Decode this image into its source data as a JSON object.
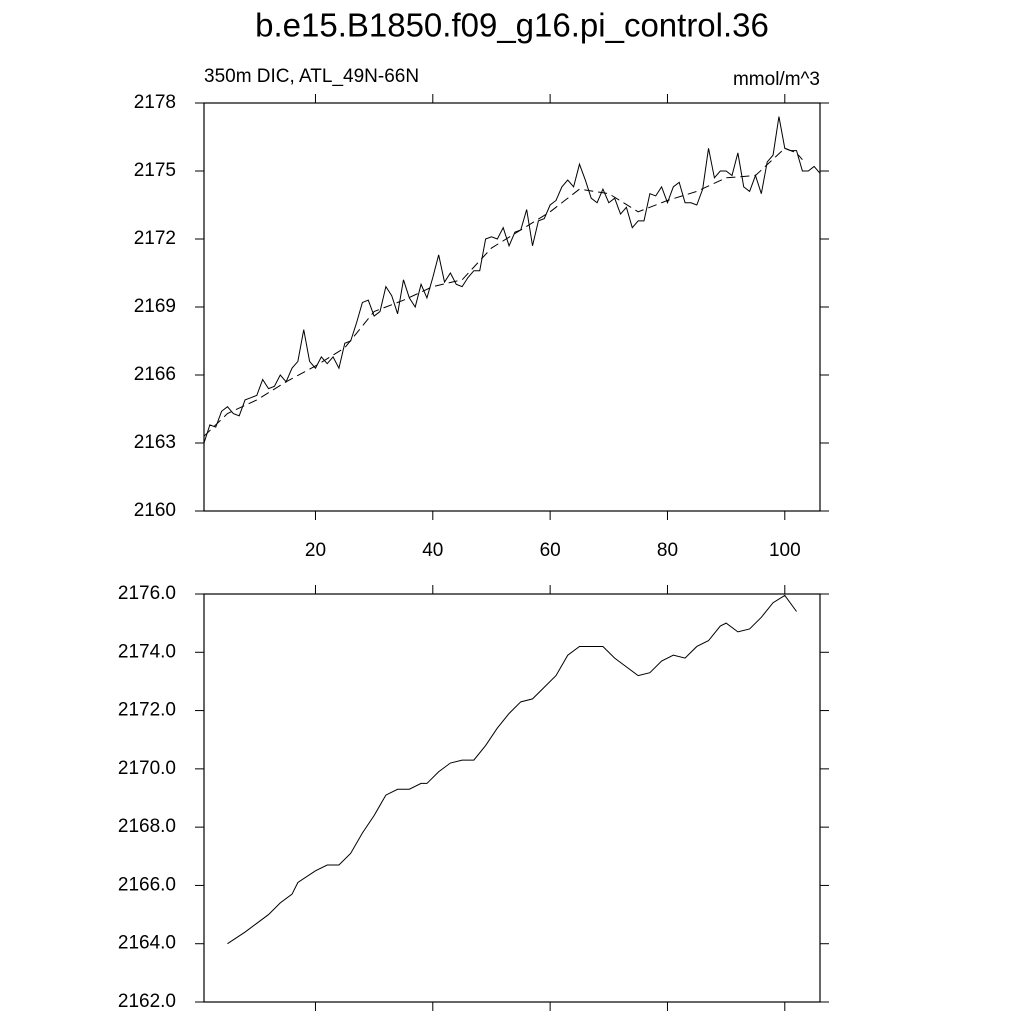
{
  "chart_data": [
    {
      "type": "line",
      "title": "b.e15.B1850.f09_g16.pi_control.36",
      "left_label": "350m DIC, ATL_49N-66N",
      "right_label": "mmol/m^3",
      "xlim": [
        1,
        106
      ],
      "xticks": [
        20,
        40,
        60,
        80,
        100
      ],
      "ylim": [
        2160,
        2178
      ],
      "yticks": [
        2160,
        2163,
        2166,
        2169,
        2172,
        2175,
        2178
      ],
      "series": [
        {
          "color": "#000000",
          "line_style": "solid",
          "x": [
            1,
            2,
            3,
            4,
            5,
            6,
            7,
            8,
            9,
            10,
            11,
            12,
            13,
            14,
            15,
            16,
            17,
            18,
            19,
            20,
            21,
            22,
            23,
            24,
            25,
            26,
            27,
            28,
            29,
            30,
            31,
            32,
            33,
            34,
            35,
            36,
            37,
            38,
            39,
            40,
            41,
            42,
            43,
            44,
            45,
            46,
            47,
            48,
            49,
            50,
            51,
            52,
            53,
            54,
            55,
            56,
            57,
            58,
            59,
            60,
            61,
            62,
            63,
            64,
            65,
            66,
            67,
            68,
            69,
            70,
            71,
            72,
            73,
            74,
            75,
            76,
            77,
            78,
            79,
            80,
            81,
            82,
            83,
            84,
            85,
            86,
            87,
            88,
            89,
            90,
            91,
            92,
            93,
            94,
            95,
            96,
            97,
            98,
            99,
            100,
            101,
            102,
            103,
            104,
            105,
            106
          ],
          "values": [
            2163.0,
            2163.8,
            2163.7,
            2164.4,
            2164.6,
            2164.3,
            2164.2,
            2164.9,
            2165.0,
            2165.1,
            2165.8,
            2165.4,
            2165.5,
            2166.0,
            2165.7,
            2166.3,
            2166.6,
            2168.0,
            2166.6,
            2166.3,
            2166.8,
            2166.5,
            2166.8,
            2166.3,
            2167.4,
            2167.5,
            2168.3,
            2169.2,
            2169.3,
            2168.6,
            2168.8,
            2169.9,
            2169.5,
            2168.7,
            2170.2,
            2169.4,
            2169.0,
            2170.0,
            2169.4,
            2170.3,
            2171.3,
            2170.1,
            2170.5,
            2170.0,
            2169.9,
            2170.3,
            2170.6,
            2170.6,
            2172.0,
            2172.1,
            2172.0,
            2172.5,
            2171.7,
            2172.3,
            2172.4,
            2173.3,
            2171.7,
            2172.8,
            2172.9,
            2173.5,
            2173.7,
            2174.3,
            2174.6,
            2174.3,
            2175.3,
            2174.6,
            2173.8,
            2173.6,
            2174.2,
            2173.6,
            2173.8,
            2173.1,
            2173.4,
            2172.5,
            2172.8,
            2172.8,
            2174.0,
            2173.9,
            2174.3,
            2173.6,
            2174.3,
            2174.5,
            2173.6,
            2173.6,
            2173.5,
            2174.2,
            2176.0,
            2174.7,
            2175.0,
            2175.0,
            2174.8,
            2175.8,
            2174.3,
            2174.1,
            2174.8,
            2174.0,
            2175.4,
            2175.7,
            2177.4,
            2176.0,
            2175.9,
            2175.9,
            2175.0,
            2175.0,
            2175.2,
            2174.9
          ]
        },
        {
          "color": "#000000",
          "line_style": "dashed",
          "x": [
            1,
            5,
            10,
            15,
            20,
            25,
            30,
            35,
            40,
            45,
            50,
            55,
            60,
            65,
            70,
            75,
            80,
            85,
            90,
            95,
            100,
            102,
            103
          ],
          "values": [
            2163.3,
            2164.3,
            2164.9,
            2165.7,
            2166.4,
            2167.2,
            2168.8,
            2169.3,
            2169.9,
            2170.2,
            2171.6,
            2172.4,
            2173.2,
            2174.2,
            2174.0,
            2173.2,
            2173.7,
            2174.1,
            2174.7,
            2174.8,
            2176.0,
            2175.8,
            2175.5
          ]
        }
      ]
    },
    {
      "type": "line",
      "xlim": [
        1,
        106
      ],
      "xticks": [
        20,
        40,
        60,
        80,
        100
      ],
      "ylim": [
        2162,
        2176
      ],
      "yticks": [
        {
          "value": 2162,
          "label": "2162.0"
        },
        {
          "value": 2164,
          "label": "2164.0"
        },
        {
          "value": 2166,
          "label": "2166.0"
        },
        {
          "value": 2168,
          "label": "2168.0"
        },
        {
          "value": 2170,
          "label": "2170.0"
        },
        {
          "value": 2172,
          "label": "2172.0"
        },
        {
          "value": 2174,
          "label": "2174.0"
        },
        {
          "value": 2176,
          "label": "2176.0"
        }
      ],
      "series": [
        {
          "color": "#000000",
          "line_style": "solid",
          "x": [
            5,
            8,
            10,
            12,
            14,
            16,
            17,
            20,
            22,
            24,
            26,
            28,
            30,
            32,
            34,
            36,
            38,
            39,
            41,
            43,
            45,
            47,
            49,
            51,
            53,
            55,
            57,
            59,
            61,
            63,
            65,
            67,
            69,
            71,
            73,
            75,
            77,
            79,
            81,
            83,
            85,
            87,
            89,
            90,
            92,
            94,
            96,
            98,
            100,
            102
          ],
          "values": [
            2164.0,
            2164.4,
            2164.7,
            2165.0,
            2165.4,
            2165.7,
            2166.1,
            2166.5,
            2166.7,
            2166.7,
            2167.1,
            2167.8,
            2168.4,
            2169.1,
            2169.3,
            2169.3,
            2169.5,
            2169.5,
            2169.9,
            2170.2,
            2170.3,
            2170.3,
            2170.8,
            2171.4,
            2171.9,
            2172.3,
            2172.4,
            2172.8,
            2173.2,
            2173.9,
            2174.2,
            2174.2,
            2174.2,
            2173.8,
            2173.5,
            2173.2,
            2173.3,
            2173.7,
            2173.9,
            2173.8,
            2174.2,
            2174.4,
            2174.9,
            2175.0,
            2174.7,
            2174.8,
            2175.2,
            2175.7,
            2175.95,
            2175.4
          ]
        }
      ]
    }
  ]
}
